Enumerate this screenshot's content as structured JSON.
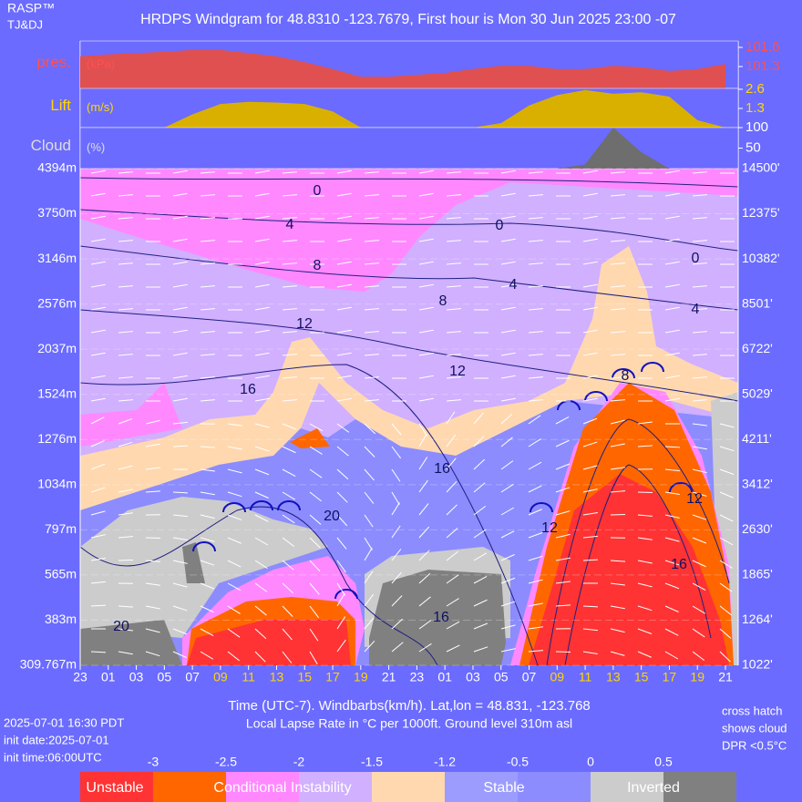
{
  "chart_data": {
    "type": "windgram",
    "brand": "RASP™",
    "credit": "TJ&DJ",
    "title": "HRDPS Windgram for 48.8310 -123.7679, First hour is Mon 30 Jun 2025 23:00 -07",
    "hours": [
      "23",
      "01",
      "03",
      "05",
      "07",
      "09",
      "11",
      "13",
      "15",
      "17",
      "19",
      "21",
      "23",
      "01",
      "03",
      "05",
      "07",
      "09",
      "11",
      "13",
      "15",
      "17",
      "19",
      "21"
    ],
    "hour_colors": [
      "#ffffff",
      "#ffffff",
      "#ffffff",
      "#ffffff",
      "#ffffff",
      "#ffd700",
      "#ffd700",
      "#ffd700",
      "#ffd700",
      "#ffd700",
      "#ffd700",
      "#ffffff",
      "#ffffff",
      "#ffffff",
      "#ffffff",
      "#ffffff",
      "#ffffff",
      "#ffd700",
      "#ffd700",
      "#ffd700",
      "#ffd700",
      "#ffd700",
      "#ffd700",
      "#ffffff"
    ],
    "pressure": {
      "name": "pres.",
      "unit": "(kPa)",
      "color": "#e05050",
      "values": [
        101.46,
        101.49,
        101.51,
        101.53,
        101.56,
        101.56,
        101.51,
        101.46,
        101.37,
        101.26,
        101.14,
        101.14,
        101.17,
        101.2,
        101.26,
        101.31,
        101.31,
        101.26,
        101.26,
        101.31,
        101.29,
        101.23,
        101.26,
        101.34
      ],
      "ylim": [
        100.957,
        101.7
      ],
      "yticks": [
        101.6,
        101.3
      ]
    },
    "lift": {
      "name": "Lift",
      "unit": "(m/s)",
      "color": "#d9b000",
      "values": [
        0,
        0,
        0,
        0,
        0.9,
        1.6,
        1.75,
        1.7,
        1.6,
        1.1,
        0,
        0,
        0,
        0,
        0,
        0.3,
        1.5,
        2.2,
        2.55,
        2.3,
        2.4,
        2.1,
        0.5,
        0
      ],
      "ylim": [
        0,
        2.66
      ],
      "yticks": [
        2.6,
        1.3
      ]
    },
    "cloud": {
      "name": "Cloud",
      "unit": "(%)",
      "color": "#6e6e6e",
      "values": [
        0,
        0,
        0,
        0,
        0,
        0,
        0,
        0,
        0,
        0,
        0,
        0,
        0,
        0,
        0,
        0,
        0,
        0,
        10,
        100,
        40,
        0,
        0,
        0
      ],
      "ylim": [
        0,
        100
      ],
      "yticks": [
        100,
        50
      ]
    },
    "levels_m": [
      "4394m",
      "3750m",
      "3146m",
      "2576m",
      "2037m",
      "1524m",
      "1276m",
      "1034m",
      "797m",
      "565m",
      "383m",
      "309.767m"
    ],
    "levels_ft": [
      "14500'",
      "12375'",
      "10382'",
      "8501'",
      "6722'",
      "5029'",
      "4211'",
      "3412'",
      "2630'",
      "1865'",
      "1264'",
      "1022'"
    ],
    "contour_labels": [
      "0",
      "4",
      "8",
      "12",
      "16",
      "20",
      "0",
      "4",
      "8",
      "12",
      "16",
      "0",
      "4",
      "8",
      "12",
      "16",
      "20",
      "16",
      "12"
    ],
    "x_label": "Time (UTC-7). Windbarbs(km/h). Lat,lon = 48.831, -123.768",
    "subtitle": "Local Lapse Rate in °C per 1000ft.   Ground level 310m asl",
    "footer_left": [
      "2025-07-01 16:30 PDT",
      "init date:2025-07-01",
      "init time:06:00UTC"
    ],
    "footer_right": [
      "cross hatch",
      "shows cloud",
      "DPR <0.5°C"
    ],
    "legend": {
      "ticks": [
        "-3",
        "-2.5",
        "-2",
        "-1.5",
        "-1.2",
        "-0.5",
        "0",
        "0.5"
      ],
      "colors": [
        "#ff3333",
        "#ff6600",
        "#ff88ff",
        "#d0b0ff",
        "#ffd8b0",
        "#9c9cff",
        "#8c8cff",
        "#cccccc",
        "#808080"
      ],
      "labels": [
        "Unstable",
        "Conditional Instability",
        "Stable",
        "Inverted"
      ]
    }
  }
}
